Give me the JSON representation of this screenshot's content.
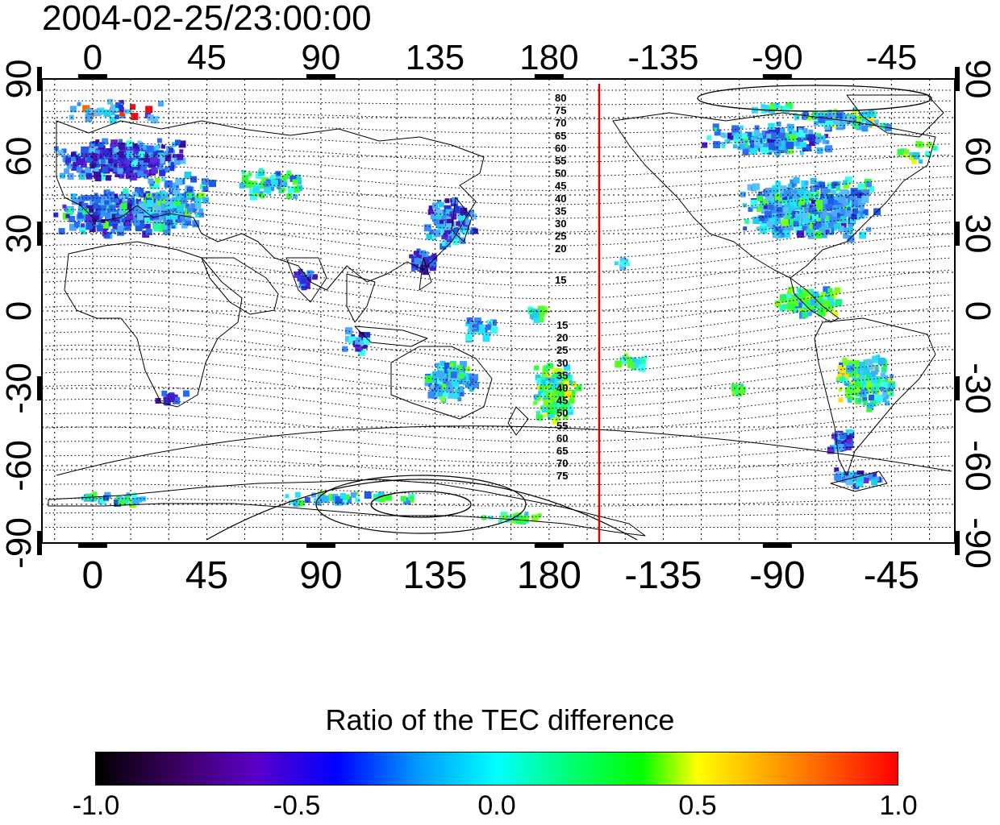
{
  "title": "2004-02-25/23:00:00",
  "map": {
    "top_lon_labels": [
      "0",
      "45",
      "90",
      "135",
      "180",
      "-135",
      "-90",
      "-45"
    ],
    "bottom_lon_labels": [
      "0",
      "45",
      "90",
      "135",
      "180",
      "-135",
      "-90",
      "-45"
    ],
    "lat_labels": [
      "90",
      "60",
      "30",
      "0",
      "-30",
      "-60",
      "-90"
    ],
    "north_contour_labels": [
      "80",
      "75",
      "70",
      "65",
      "60",
      "55",
      "50",
      "45",
      "40",
      "35",
      "30",
      "25",
      "20",
      "15"
    ],
    "south_contour_labels": [
      "15",
      "20",
      "25",
      "30",
      "35",
      "40",
      "45",
      "50",
      "55",
      "60",
      "65",
      "70",
      "75"
    ],
    "terminator_line_color": "#e00000"
  },
  "colorbar": {
    "title": "Ratio of the TEC difference",
    "tick_labels": [
      "-1.0",
      "-0.5",
      "0.0",
      "0.5",
      "1.0"
    ],
    "colors": [
      "#000000",
      "#5b00c8",
      "#0000ff",
      "#00ffff",
      "#00ff00",
      "#ffff00",
      "#ff0000"
    ]
  }
}
